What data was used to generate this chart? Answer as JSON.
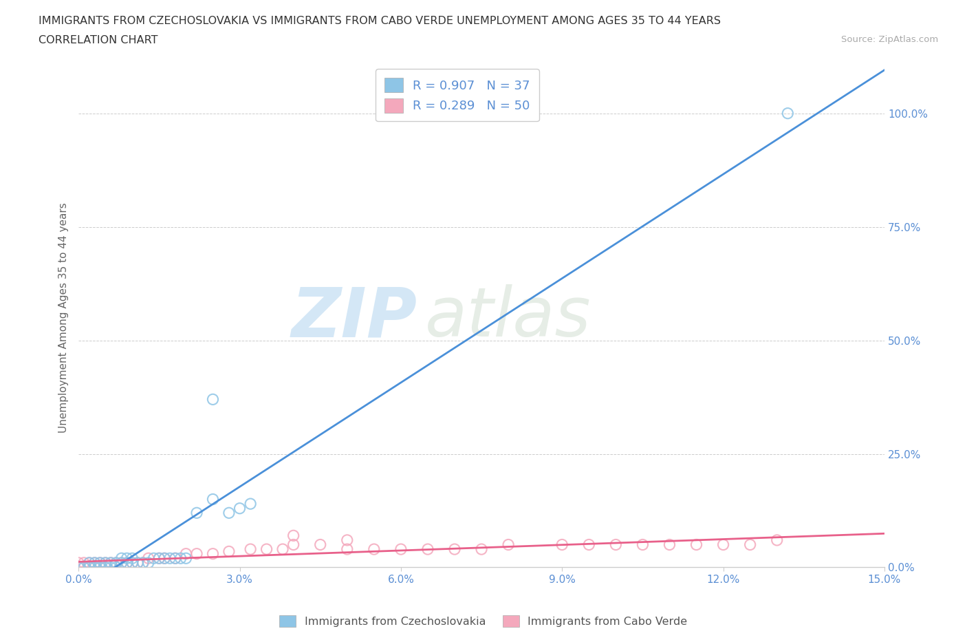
{
  "title_line1": "IMMIGRANTS FROM CZECHOSLOVAKIA VS IMMIGRANTS FROM CABO VERDE UNEMPLOYMENT AMONG AGES 35 TO 44 YEARS",
  "title_line2": "CORRELATION CHART",
  "source_text": "Source: ZipAtlas.com",
  "ylabel": "Unemployment Among Ages 35 to 44 years",
  "xlim": [
    0.0,
    0.15
  ],
  "ylim": [
    0.0,
    1.1
  ],
  "xticks": [
    0.0,
    0.03,
    0.06,
    0.09,
    0.12,
    0.15
  ],
  "yticks": [
    0.0,
    0.25,
    0.5,
    0.75,
    1.0
  ],
  "ytick_labels": [
    "0.0%",
    "25.0%",
    "50.0%",
    "75.0%",
    "100.0%"
  ],
  "xtick_labels": [
    "0.0%",
    "3.0%",
    "6.0%",
    "9.0%",
    "12.0%",
    "15.0%"
  ],
  "blue_color": "#8ec5e6",
  "pink_color": "#f4a8bc",
  "blue_line_color": "#4a90d9",
  "pink_line_color": "#e8608a",
  "tick_color": "#5b8fd4",
  "R_blue": 0.907,
  "N_blue": 37,
  "R_pink": 0.289,
  "N_pink": 50,
  "watermark_zip": "ZIP",
  "watermark_atlas": "atlas",
  "legend_items": [
    "Immigrants from Czechoslovakia",
    "Immigrants from Cabo Verde"
  ],
  "blue_scatter_x": [
    0.0,
    0.001,
    0.002,
    0.002,
    0.003,
    0.003,
    0.004,
    0.004,
    0.005,
    0.005,
    0.006,
    0.006,
    0.007,
    0.007,
    0.008,
    0.008,
    0.009,
    0.009,
    0.01,
    0.01,
    0.011,
    0.012,
    0.013,
    0.014,
    0.015,
    0.016,
    0.017,
    0.018,
    0.019,
    0.02,
    0.022,
    0.025,
    0.028,
    0.03,
    0.032,
    0.025,
    0.132
  ],
  "blue_scatter_y": [
    0.0,
    0.0,
    0.0,
    0.01,
    0.0,
    0.01,
    0.0,
    0.01,
    0.0,
    0.01,
    0.0,
    0.01,
    0.0,
    0.01,
    0.01,
    0.02,
    0.01,
    0.02,
    0.01,
    0.02,
    0.01,
    0.01,
    0.01,
    0.02,
    0.02,
    0.02,
    0.02,
    0.02,
    0.02,
    0.02,
    0.12,
    0.15,
    0.12,
    0.13,
    0.14,
    0.37,
    1.0
  ],
  "pink_scatter_x": [
    0.0,
    0.0,
    0.001,
    0.001,
    0.002,
    0.002,
    0.003,
    0.003,
    0.004,
    0.004,
    0.005,
    0.005,
    0.006,
    0.007,
    0.008,
    0.009,
    0.01,
    0.011,
    0.012,
    0.013,
    0.015,
    0.016,
    0.018,
    0.02,
    0.022,
    0.025,
    0.028,
    0.032,
    0.035,
    0.038,
    0.04,
    0.045,
    0.05,
    0.055,
    0.06,
    0.065,
    0.07,
    0.075,
    0.08,
    0.09,
    0.095,
    0.1,
    0.105,
    0.11,
    0.115,
    0.12,
    0.125,
    0.13,
    0.04,
    0.05
  ],
  "pink_scatter_y": [
    0.0,
    0.01,
    0.0,
    0.01,
    0.0,
    0.01,
    0.0,
    0.01,
    0.0,
    0.01,
    0.0,
    0.01,
    0.01,
    0.01,
    0.01,
    0.01,
    0.01,
    0.01,
    0.01,
    0.02,
    0.02,
    0.02,
    0.02,
    0.03,
    0.03,
    0.03,
    0.035,
    0.04,
    0.04,
    0.04,
    0.05,
    0.05,
    0.04,
    0.04,
    0.04,
    0.04,
    0.04,
    0.04,
    0.05,
    0.05,
    0.05,
    0.05,
    0.05,
    0.05,
    0.05,
    0.05,
    0.05,
    0.06,
    0.07,
    0.06
  ]
}
